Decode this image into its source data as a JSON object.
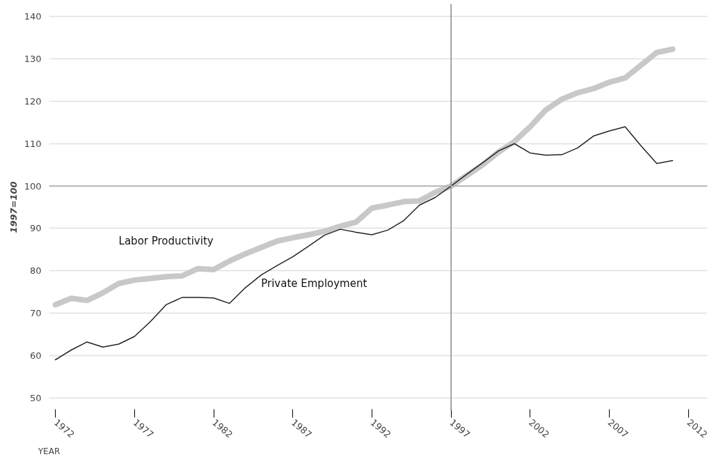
{
  "chart_data": {
    "type": "line",
    "xlabel": "YEAR",
    "ylabel": "1997=100",
    "x": [
      1972,
      1973,
      1974,
      1975,
      1976,
      1977,
      1978,
      1979,
      1980,
      1981,
      1982,
      1983,
      1984,
      1985,
      1986,
      1987,
      1988,
      1989,
      1990,
      1991,
      1992,
      1993,
      1994,
      1995,
      1996,
      1997,
      1998,
      1999,
      2000,
      2001,
      2002,
      2003,
      2004,
      2005,
      2006,
      2007,
      2008,
      2009,
      2010,
      2011
    ],
    "series": [
      {
        "name": "Labor Productivity",
        "color": "#c8c8c8",
        "values": [
          72,
          73.5,
          73,
          74.8,
          77,
          77.8,
          78.2,
          78.6,
          78.8,
          80.5,
          80.3,
          82.3,
          84,
          85.5,
          87,
          87.8,
          88.5,
          89.3,
          90.5,
          91.5,
          94.8,
          95.5,
          96.3,
          96.5,
          98.5,
          100,
          102.5,
          105,
          108,
          110.5,
          114,
          118,
          120.5,
          122,
          123,
          124.5,
          125.5,
          128.5,
          131.5,
          132.3
        ]
      },
      {
        "name": "Private Employment",
        "color": "#222222",
        "values": [
          59,
          61.3,
          63.2,
          62,
          62.7,
          64.5,
          68,
          72,
          73.7,
          73.7,
          73.6,
          72.3,
          76,
          79,
          81.2,
          83.3,
          85.8,
          88.4,
          89.8,
          89.1,
          88.5,
          89.6,
          91.8,
          95.5,
          97.3,
          100,
          102.8,
          105.5,
          108.3,
          110,
          107.8,
          107.3,
          107.4,
          109,
          111.8,
          113,
          114,
          109.5,
          105.3,
          106
        ]
      }
    ],
    "xlim": [
      1971.6,
      2013.2
    ],
    "ylim": [
      47,
      143
    ],
    "xticks": [
      1972,
      1977,
      1982,
      1987,
      1992,
      1997,
      2002,
      2007,
      2012
    ],
    "yticks": [
      50,
      60,
      70,
      80,
      90,
      100,
      110,
      120,
      130,
      140
    ],
    "ref_lines": [
      {
        "axis": "x",
        "value": 1997,
        "color": "#888888"
      },
      {
        "axis": "y",
        "value": 100,
        "color": "#aaaaaa"
      }
    ],
    "grid": "y",
    "marker": "none",
    "line_style": "solid"
  }
}
